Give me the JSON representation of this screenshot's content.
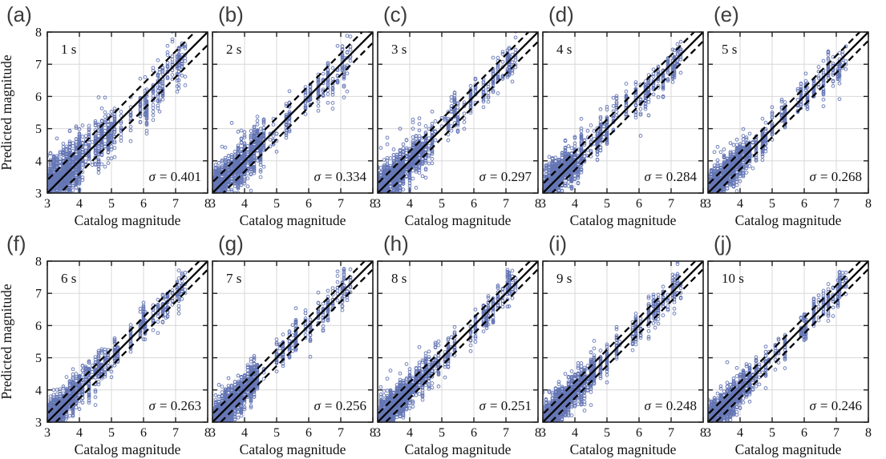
{
  "chart_data": {
    "type": "scatter",
    "grid_layout": {
      "rows": 2,
      "cols": 5
    },
    "xlabel": "Catalog magnitude",
    "ylabel": "Predicted magnitude",
    "xlim": [
      3,
      8
    ],
    "ylim": [
      3,
      8
    ],
    "x_ticks": [
      3,
      4,
      5,
      6,
      7,
      8
    ],
    "y_ticks": [
      3,
      4,
      5,
      6,
      7,
      8
    ],
    "x_tick_labels": [
      "3",
      "4",
      "5",
      "6",
      "7",
      "8"
    ],
    "y_tick_labels": [
      "3",
      "4",
      "5",
      "6",
      "7",
      "8"
    ],
    "grid": true,
    "reference_lines": {
      "identity": {
        "style": "solid",
        "slope": 1,
        "intercept": 0
      },
      "error_bounds": {
        "style": "dashed",
        "offset": "plus-minus sigma of each panel"
      }
    },
    "marker": {
      "shape": "open-circle",
      "color": "#3e54a3",
      "radius_px": 1.9
    },
    "panels": [
      {
        "panel_label": "(a)",
        "window_label": "1 s",
        "sigma": 0.401,
        "sigma_symbol": "σ",
        "sigma_value_text": "= 0.401"
      },
      {
        "panel_label": "(b)",
        "window_label": "2 s",
        "sigma": 0.334,
        "sigma_symbol": "σ",
        "sigma_value_text": "= 0.334"
      },
      {
        "panel_label": "(c)",
        "window_label": "3 s",
        "sigma": 0.297,
        "sigma_symbol": "σ",
        "sigma_value_text": "= 0.297"
      },
      {
        "panel_label": "(d)",
        "window_label": "4 s",
        "sigma": 0.284,
        "sigma_symbol": "σ",
        "sigma_value_text": "= 0.284"
      },
      {
        "panel_label": "(e)",
        "window_label": "5 s",
        "sigma": 0.268,
        "sigma_symbol": "σ",
        "sigma_value_text": "= 0.268"
      },
      {
        "panel_label": "(f)",
        "window_label": "6 s",
        "sigma": 0.263,
        "sigma_symbol": "σ",
        "sigma_value_text": "= 0.263"
      },
      {
        "panel_label": "(g)",
        "window_label": "7 s",
        "sigma": 0.256,
        "sigma_symbol": "σ",
        "sigma_value_text": "= 0.256"
      },
      {
        "panel_label": "(h)",
        "window_label": "8 s",
        "sigma": 0.251,
        "sigma_symbol": "σ",
        "sigma_value_text": "= 0.251"
      },
      {
        "panel_label": "(i)",
        "window_label": "9 s",
        "sigma": 0.248,
        "sigma_symbol": "σ",
        "sigma_value_text": "= 0.248"
      },
      {
        "panel_label": "(j)",
        "window_label": "10 s",
        "sigma": 0.246,
        "sigma_symbol": "σ",
        "sigma_value_text": "= 0.246"
      }
    ],
    "scatter_sim": {
      "description": "Approximation of the depicted point clouds: catalog magnitudes 3.0-7.3 follow a Gutenberg-Richter distribution rounded to 0.1 (vertical stripes), predicted = catalog + event bias + noise scaled by the panel sigma, with slight under-prediction of large magnitudes in short windows.",
      "seed_base": 20240,
      "n_events": 260,
      "b_value": 0.8,
      "mag_min": 3.0,
      "mag_max": 7.3,
      "fixed_events": [
        [
          5.9,
          22
        ],
        [
          6.05,
          16
        ],
        [
          6.3,
          20
        ],
        [
          6.45,
          14
        ],
        [
          6.6,
          22
        ],
        [
          6.75,
          18
        ],
        [
          6.9,
          12
        ],
        [
          7.05,
          16
        ],
        [
          7.1,
          26
        ],
        [
          7.2,
          10
        ],
        [
          7.3,
          8
        ]
      ]
    }
  },
  "styles": {
    "background": "#ffffff",
    "marker_color": "#3e54a3",
    "line_color": "#000000",
    "grid_color": "#d8d8d8",
    "axis_color": "#1f1f1f",
    "panel_label_color": "#3c3c3c"
  }
}
